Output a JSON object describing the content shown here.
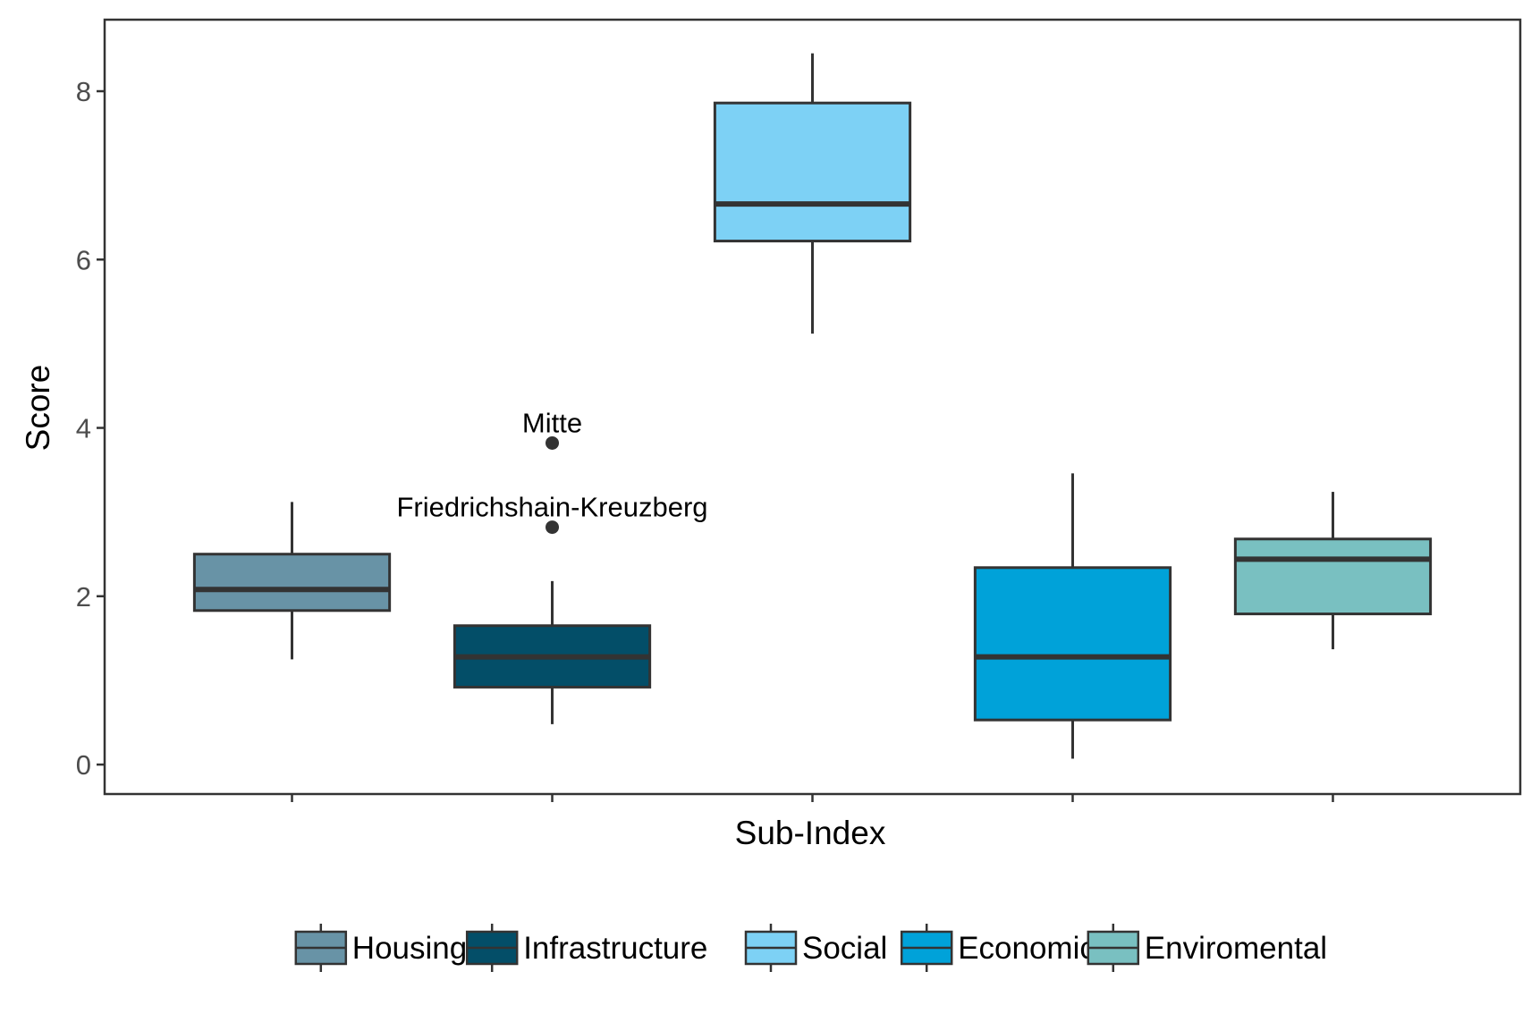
{
  "chart_data": {
    "type": "boxplot",
    "xlabel": "Sub-Index",
    "ylabel": "Score",
    "ylim": [
      -0.35,
      8.85
    ],
    "yticks": [
      0,
      2,
      4,
      6,
      8
    ],
    "grid": false,
    "legend_position": "bottom",
    "series": [
      {
        "name": "Housing",
        "color": "#6893a6",
        "whisker_low": 1.25,
        "q1": 1.83,
        "median": 2.08,
        "q3": 2.5,
        "whisker_high": 3.12,
        "outliers": []
      },
      {
        "name": "Infrastructure",
        "color": "#034e68",
        "whisker_low": 0.48,
        "q1": 0.92,
        "median": 1.28,
        "q3": 1.65,
        "whisker_high": 2.18,
        "outliers": [
          {
            "value": 3.82,
            "label": "Mitte"
          },
          {
            "value": 2.82,
            "label": "Friedrichshain-Kreuzberg"
          }
        ]
      },
      {
        "name": "Social",
        "color": "#7dd1f5",
        "whisker_low": 5.12,
        "q1": 6.22,
        "median": 6.66,
        "q3": 7.86,
        "whisker_high": 8.45,
        "outliers": []
      },
      {
        "name": "Economic",
        "color": "#00a2d9",
        "whisker_low": 0.07,
        "q1": 0.53,
        "median": 1.28,
        "q3": 2.34,
        "whisker_high": 3.46,
        "outliers": []
      },
      {
        "name": "Enviromental",
        "color": "#79c0c1",
        "whisker_low": 1.37,
        "q1": 1.79,
        "median": 2.44,
        "q3": 2.68,
        "whisker_high": 3.24,
        "outliers": []
      }
    ]
  }
}
